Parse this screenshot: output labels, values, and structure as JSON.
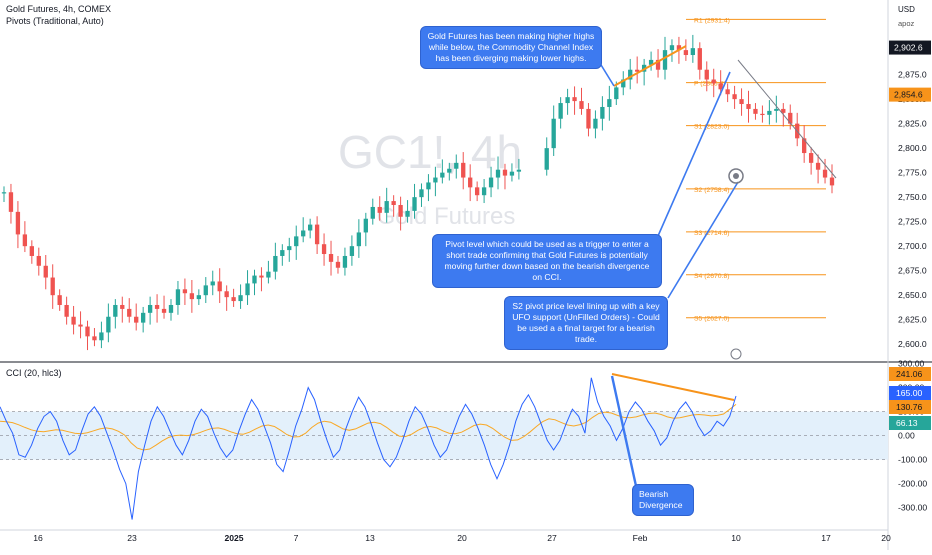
{
  "header": {
    "symbol_line": "Gold Futures, 4h, COMEX",
    "indicator_line": "Pivots (Traditional, Auto)",
    "cci_line": "CCI (20, hlc3)",
    "currency": "USD",
    "unit_label": "apoz"
  },
  "watermark": {
    "ticker": "GC1!, 4h",
    "name": "Gold Futures"
  },
  "colors": {
    "up": "#26a69a",
    "down": "#ef5350",
    "annotation": "#f7931a",
    "callout": "#3d7af0",
    "pivot": "#f7931a",
    "cci": "#2962ff",
    "cci_ma": "#f9a825"
  },
  "callouts": {
    "top": "Gold Futures has been making higher highs while below, the Commodity Channel Index has been diverging making lower highs.",
    "middle": "Pivot level which could be used as a trigger to enter a short trade confirming that Gold Futures is potentially moving further down based on the bearish divergence on CCI.",
    "lower": "S2 pivot price level lining up with a key UFO support (UnFilled Orders) - Could be used a a final target for a bearish trade.",
    "bottom": "Bearish Divergence"
  },
  "price_badges": {
    "current": "2,902.6",
    "secondary": "2,854.6"
  },
  "cci_badges": [
    "241.06",
    "165.00",
    "130.76",
    "66.13"
  ],
  "chart_data": [
    {
      "type": "candlestick",
      "title": "Gold Futures, 4h, COMEX",
      "y_ticks": [
        "2,600.0",
        "2,625.0",
        "2,650.0",
        "2,675.0",
        "2,700.0",
        "2,725.0",
        "2,750.0",
        "2,775.0",
        "2,800.0",
        "2,825.0",
        "2,850.0",
        "2,875.0",
        "2,900.0"
      ],
      "ylim": [
        2590,
        2945
      ],
      "x_ticks": [
        "16",
        "23",
        "2025",
        "7",
        "13",
        "20",
        "27",
        "Feb",
        "10",
        "17",
        "20"
      ],
      "pivots": [
        {
          "label": "R1 (2931.4)",
          "value": 2931.4
        },
        {
          "label": "P (2866.8)",
          "value": 2866.8
        },
        {
          "label": "S1 (2823.0)",
          "value": 2823.0
        },
        {
          "label": "S2 (2758.4)",
          "value": 2758.4
        },
        {
          "label": "S3 (2714.6)",
          "value": 2714.6
        },
        {
          "label": "S4 (2670.8)",
          "value": 2670.8
        },
        {
          "label": "S5 (2627.0)",
          "value": 2627.0
        }
      ],
      "close_path": [
        2755,
        2735,
        2712,
        2700,
        2690,
        2680,
        2668,
        2650,
        2640,
        2628,
        2620,
        2618,
        2608,
        2604,
        2612,
        2628,
        2640,
        2636,
        2628,
        2622,
        2632,
        2640,
        2636,
        2632,
        2640,
        2656,
        2652,
        2646,
        2650,
        2660,
        2664,
        2654,
        2648,
        2644,
        2650,
        2662,
        2670,
        2668,
        2674,
        2690,
        2696,
        2700,
        2710,
        2716,
        2722,
        2702,
        2692,
        2684,
        2678,
        2690,
        2700,
        2714,
        2728,
        2740,
        2734,
        2746,
        2742,
        2730,
        2736,
        2750,
        2758,
        2765,
        2770,
        2775,
        2779,
        2785,
        2770,
        2760,
        2752,
        2760,
        2770,
        2778,
        2772,
        2776,
        2778,
        null,
        null,
        null,
        2800,
        2830,
        2846,
        2852,
        2848,
        2840,
        2820,
        2830,
        2842,
        2850,
        2862,
        2870,
        2880,
        2878,
        2885,
        2890,
        2880,
        2900,
        2905,
        2900,
        2895,
        2902,
        2880,
        2870,
        2866,
        2860,
        2855,
        2850,
        2845,
        2840,
        2835,
        2834,
        2838,
        2840,
        2836,
        2825,
        2810,
        2795,
        2785,
        2778,
        2770,
        2762
      ]
    },
    {
      "type": "line",
      "title": "CCI (20, hlc3)",
      "y_ticks": [
        "300.00",
        "200.00",
        "100.00",
        "0.00",
        "-100.00",
        "-200.00",
        "-300.00"
      ],
      "ylim": [
        -360,
        290
      ],
      "band": [
        -100,
        100
      ],
      "series": [
        {
          "values": [
            120,
            60,
            10,
            -80,
            -90,
            -40,
            30,
            80,
            100,
            60,
            -20,
            -80,
            -60,
            20,
            90,
            120,
            80,
            10,
            -60,
            -140,
            -200,
            -350,
            -150,
            -40,
            60,
            120,
            80,
            20,
            -40,
            -80,
            -20,
            60,
            110,
            80,
            10,
            -50,
            -90,
            -60,
            20,
            90,
            150,
            110,
            40,
            -30,
            -120,
            -150,
            -60,
            40,
            110,
            200,
            150,
            60,
            -20,
            -90,
            -60,
            30,
            100,
            160,
            120,
            50,
            -30,
            -100,
            -130,
            -90,
            -20,
            60,
            120,
            90,
            30,
            -40,
            -90,
            -60,
            10,
            80,
            130,
            90,
            30,
            -40,
            -120,
            -180,
            -120,
            -40,
            60,
            130,
            170,
            120,
            50,
            -20,
            -60,
            -20,
            50,
            110,
            80,
            10,
            241,
            140,
            80,
            40,
            -20,
            30,
            100,
            140,
            110,
            60,
            20,
            -40,
            -10,
            60,
            110,
            140,
            100,
            40,
            0,
            20,
            60,
            40,
            80,
            165
          ]
        },
        {
          "values": [
            60,
            58,
            54,
            45,
            34,
            24,
            18,
            16,
            20,
            24,
            22,
            16,
            10,
            8,
            12,
            20,
            28,
            32,
            28,
            18,
            2,
            -30,
            -52,
            -60,
            -56,
            -40,
            -22,
            -8,
            0,
            2,
            0,
            4,
            12,
            22,
            30,
            32,
            26,
            16,
            8,
            6,
            14,
            28,
            40,
            44,
            38,
            22,
            4,
            -6,
            -4,
            10,
            34,
            52,
            60,
            56,
            42,
            28,
            22,
            28,
            40,
            52,
            56,
            50,
            34,
            14,
            -2,
            -4,
            6,
            22,
            34,
            38,
            32,
            20,
            10,
            8,
            14,
            28,
            42,
            48,
            44,
            30,
            10,
            -8,
            -20,
            -18,
            -4,
            16,
            38,
            58,
            70,
            66,
            54,
            44,
            40,
            46,
            56,
            76,
            92,
            98,
            94,
            84,
            76,
            74,
            78,
            86,
            92,
            94,
            88,
            78,
            72,
            74,
            80,
            86,
            88,
            86,
            82,
            84,
            90,
            110,
            130
          ]
        }
      ]
    }
  ]
}
